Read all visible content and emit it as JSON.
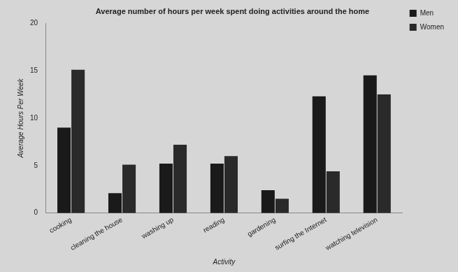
{
  "chart_data": {
    "type": "bar",
    "title": "Average number of hours per week spent doing activities around the home",
    "x_label": "Activity",
    "y_label": "Average Hours Per Week",
    "categories": [
      "cooking",
      "cleaning the house",
      "washing up",
      "reading",
      "gardening",
      "surfing the Internet",
      "watching television"
    ],
    "series": [
      {
        "name": "Men",
        "color": "#1a1a1a",
        "values": [
          9.0,
          2.1,
          5.2,
          5.2,
          2.4,
          12.3,
          14.5
        ]
      },
      {
        "name": "Women",
        "color": "#2a2a2a",
        "values": [
          15.1,
          5.1,
          7.2,
          6.0,
          1.5,
          4.4,
          12.5
        ]
      }
    ],
    "ylim": [
      0,
      20
    ],
    "yticks": [
      0,
      5,
      10,
      15,
      20
    ],
    "grid": false,
    "legend": "upper right"
  }
}
